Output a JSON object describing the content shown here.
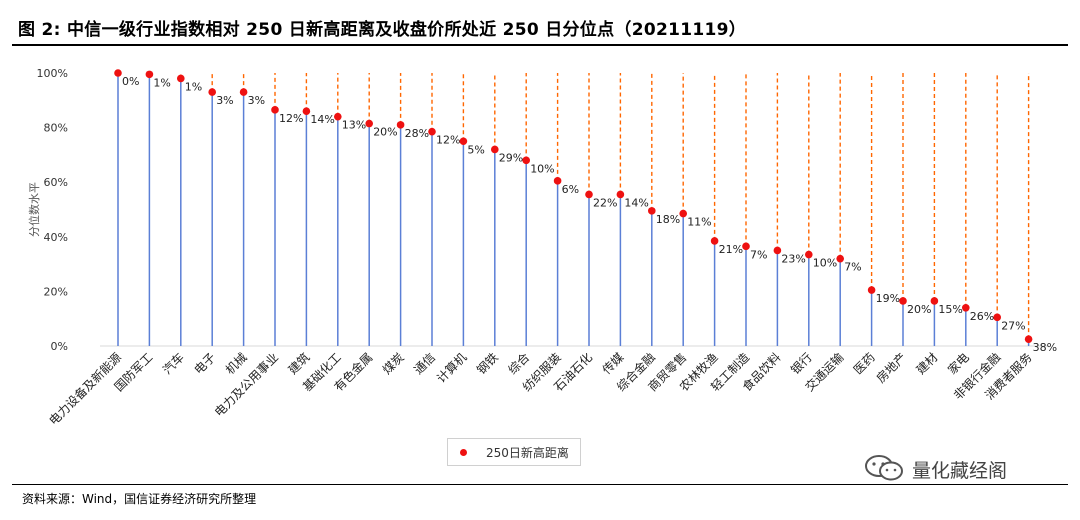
{
  "title": "图 2:  中信一级行业指数相对 250 日新高距离及收盘价所处近 250 日分位点（20211119）",
  "source": "资料来源：Wind，国信证券经济研究所整理",
  "watermark": "量化藏经阁",
  "legend_label": "250日新高距离",
  "chart_data": {
    "type": "scatter",
    "title": "",
    "xlabel": "",
    "ylabel": "分位数水平",
    "ylim": [
      0,
      100
    ],
    "yticks": [
      "0%",
      "20%",
      "40%",
      "60%",
      "80%",
      "100%"
    ],
    "legend": "bottom-center",
    "grid": false,
    "colors": {
      "point": "#ee1111",
      "stem": "#5b7fd6",
      "gap": "#ff6600"
    },
    "categories": [
      "电力设备及新能源",
      "国防军工",
      "汽车",
      "电子",
      "机械",
      "电力及公用事业",
      "建筑",
      "基础化工",
      "有色金属",
      "煤炭",
      "通信",
      "计算机",
      "钢铁",
      "综合",
      "纺织服装",
      "石油石化",
      "传媒",
      "综合金融",
      "商贸零售",
      "农林牧渔",
      "轻工制造",
      "食品饮料",
      "银行",
      "交通运输",
      "医药",
      "房地产",
      "建材",
      "家电",
      "非银行金融",
      "消费者服务"
    ],
    "series": [
      {
        "name": "250日新高距离",
        "values": [
          100,
          99.5,
          98,
          93,
          93,
          86.5,
          86,
          84,
          81.5,
          81,
          78.5,
          75,
          72,
          68,
          60.5,
          55.5,
          55.5,
          49.5,
          48.5,
          38.5,
          36.5,
          35,
          33.5,
          32,
          20.5,
          16.5,
          16.5,
          14,
          10.5,
          2.5
        ],
        "labels": [
          "0%",
          "1%",
          "1%",
          "3%",
          "3%",
          "12%",
          "14%",
          "13%",
          "20%",
          "28%",
          "12%",
          "5%",
          "29%",
          "10%",
          "6%",
          "22%",
          "14%",
          "18%",
          "11%",
          "21%",
          "7%",
          "23%",
          "10%",
          "7%",
          "19%",
          "20%",
          "15%",
          "26%",
          "27%",
          "38%"
        ]
      }
    ]
  }
}
